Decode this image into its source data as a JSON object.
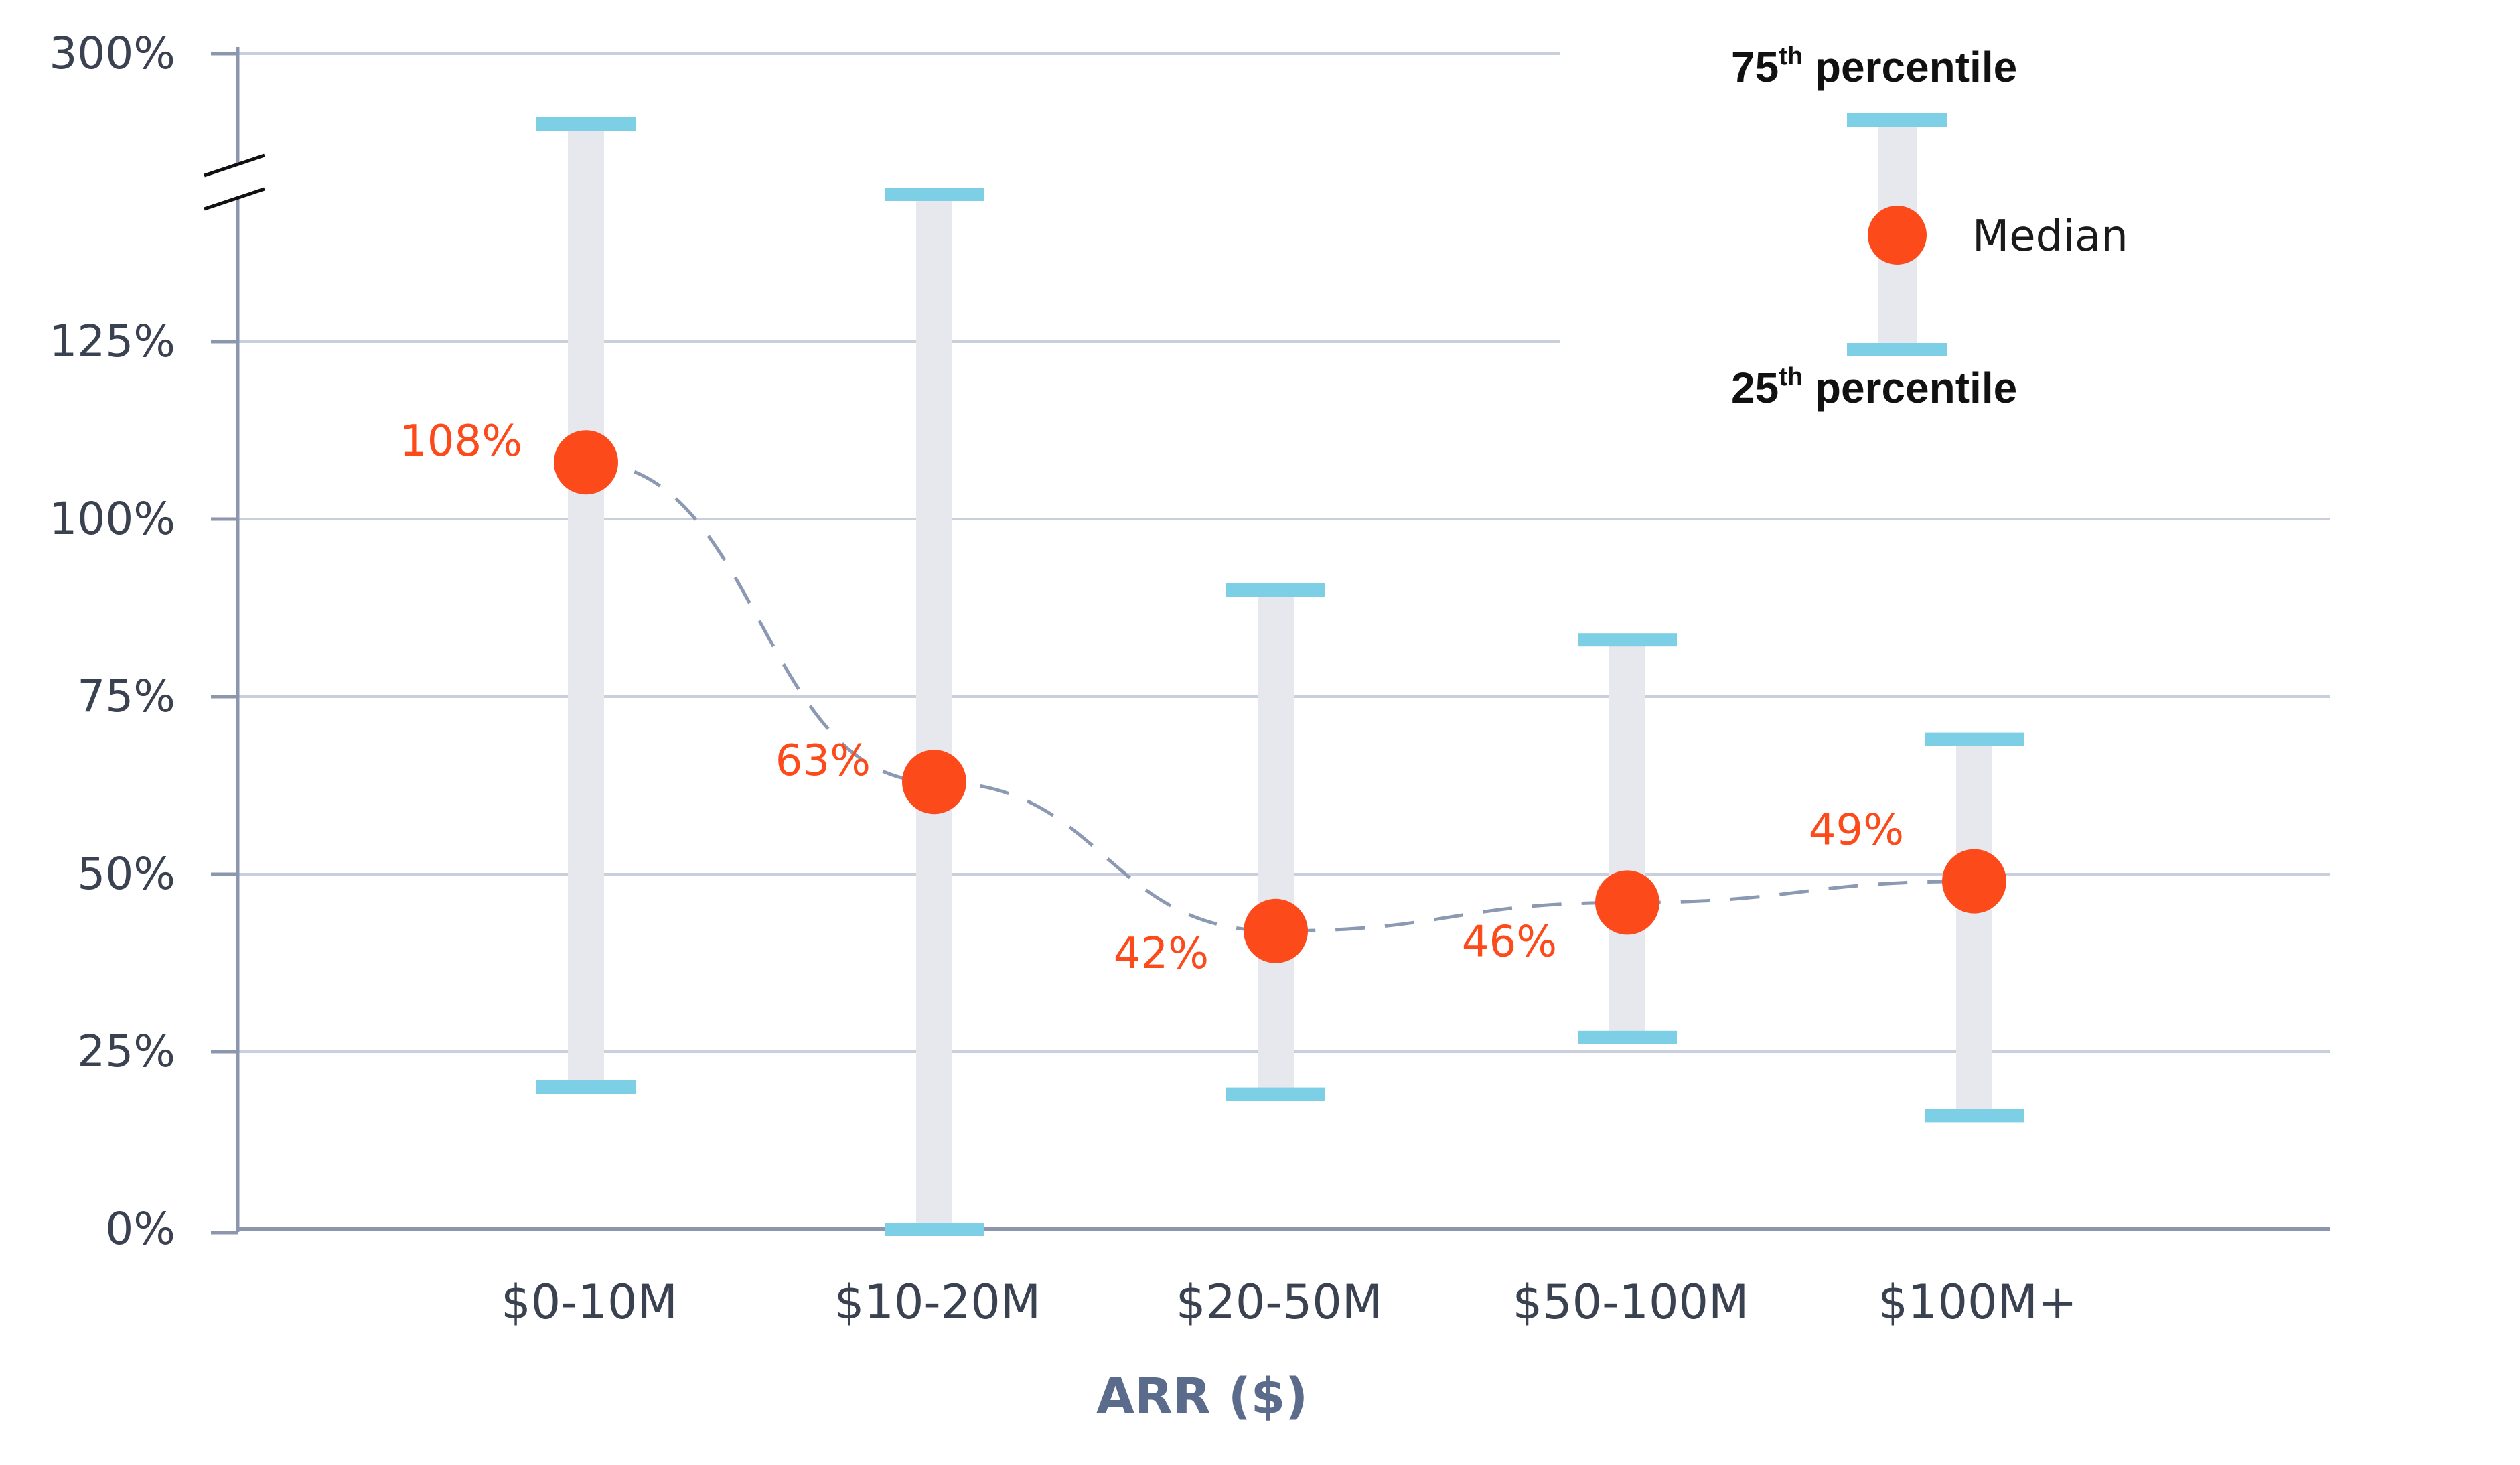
{
  "colors": {
    "median": "#fc4a1a",
    "whisker_cap": "#7ccfe4",
    "whisker_bar": "#e7e7ee",
    "grid": "#c9cfdb",
    "axis": "#8c96ad",
    "trend": "#8c99b3",
    "label_text": "#fc4a1a"
  },
  "legend": {
    "top_label": "75",
    "top_sup": "th",
    "top_rest": " percentile",
    "median_label": "Median",
    "bottom_label": "25",
    "bottom_sup": "th",
    "bottom_rest": " percentile"
  },
  "chart_data": {
    "type": "scatter",
    "subtype": "range with median markers (interquartile bars) and dashed trend line",
    "xlabel": "ARR ($)",
    "ylabel": "",
    "categories": [
      "$0-10M",
      "$10-20M",
      "$20-50M",
      "$50-100M",
      "$100M+"
    ],
    "y_tick_labels": [
      "0%",
      "25%",
      "50%",
      "75%",
      "100%",
      "125%",
      "300%"
    ],
    "y_tick_values": [
      0,
      25,
      50,
      75,
      100,
      125,
      300
    ],
    "axis_break": {
      "from": 145,
      "to": 280
    },
    "ylim": [
      0,
      300
    ],
    "grid": true,
    "legend_position": "top-right",
    "series": [
      {
        "name": "Median",
        "values": [
          108,
          63,
          42,
          46,
          49
        ],
        "labels": [
          "108%",
          "63%",
          "42%",
          "46%",
          "49%"
        ]
      },
      {
        "name": "75th percentile",
        "values": [
          290,
          270,
          90,
          83,
          69
        ]
      },
      {
        "name": "25th percentile",
        "values": [
          20,
          0,
          19,
          27,
          16
        ]
      }
    ]
  }
}
